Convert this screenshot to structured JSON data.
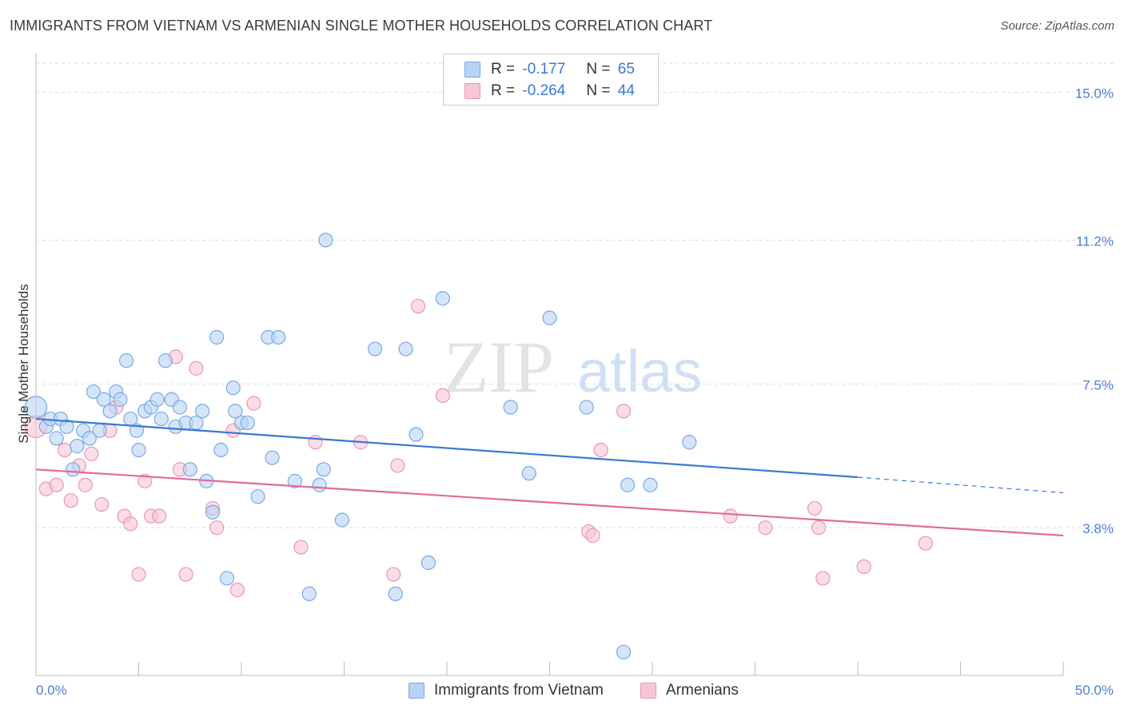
{
  "header": {
    "title": "IMMIGRANTS FROM VIETNAM VS ARMENIAN SINGLE MOTHER HOUSEHOLDS CORRELATION CHART",
    "source": "Source: ZipAtlas.com"
  },
  "watermark": {
    "zip": "ZIP",
    "atlas": "atlas"
  },
  "legend": {
    "rows": [
      {
        "r_label": "R =",
        "r_value": "-0.177",
        "n_label": "N =",
        "n_value": "65"
      },
      {
        "r_label": "R =",
        "r_value": "-0.264",
        "n_label": "N =",
        "n_value": "44"
      }
    ]
  },
  "colors": {
    "vietnam_fill": "#b9d3f5",
    "vietnam_stroke": "#7aa8e6",
    "vietnam_line": "#3a78d4",
    "armenian_fill": "#f7c6d6",
    "armenian_stroke": "#eb96b2",
    "armenian_line": "#e26a96",
    "tick_label": "#4a7fd0",
    "grid": "#dddddd"
  },
  "chart_data": {
    "type": "scatter",
    "ylabel": "Single Mother Households",
    "xlim": [
      0,
      50
    ],
    "ylim": [
      0,
      16
    ],
    "x_tick_labels": [
      {
        "value": 0,
        "label": "0.0%"
      },
      {
        "value": 50,
        "label": "50.0%"
      }
    ],
    "y_ticks": [
      {
        "value": 3.8,
        "label": "3.8%"
      },
      {
        "value": 7.5,
        "label": "7.5%"
      },
      {
        "value": 11.2,
        "label": "11.2%"
      },
      {
        "value": 15.0,
        "label": "15.0%"
      }
    ],
    "grid": "horizontal dashed",
    "legend_position": "top-center",
    "series": [
      {
        "name": "Immigrants from Vietnam",
        "color": "#7aa8e6",
        "trend": {
          "x0": 0,
          "y0": 6.6,
          "x1": 40,
          "y1": 5.1,
          "dashed_to_x": 50,
          "dashed_to_y": 4.7
        },
        "points": [
          [
            0.0,
            6.9,
            1.6
          ],
          [
            0.5,
            6.4,
            1.0
          ],
          [
            0.7,
            6.6,
            1.0
          ],
          [
            1.0,
            6.1,
            1.0
          ],
          [
            1.2,
            6.6,
            1.0
          ],
          [
            1.5,
            6.4,
            1.0
          ],
          [
            1.8,
            5.3,
            1.0
          ],
          [
            2.0,
            5.9,
            1.0
          ],
          [
            2.3,
            6.3,
            1.0
          ],
          [
            2.6,
            6.1,
            1.0
          ],
          [
            2.8,
            7.3,
            1.0
          ],
          [
            3.1,
            6.3,
            1.0
          ],
          [
            3.3,
            7.1,
            1.0
          ],
          [
            3.6,
            6.8,
            1.0
          ],
          [
            3.9,
            7.3,
            1.0
          ],
          [
            4.1,
            7.1,
            1.0
          ],
          [
            4.4,
            8.1,
            1.0
          ],
          [
            4.6,
            6.6,
            1.0
          ],
          [
            4.9,
            6.3,
            1.0
          ],
          [
            5.0,
            5.8,
            1.0
          ],
          [
            5.3,
            6.8,
            1.0
          ],
          [
            5.6,
            6.9,
            1.0
          ],
          [
            5.9,
            7.1,
            1.0
          ],
          [
            6.1,
            6.6,
            1.0
          ],
          [
            6.3,
            8.1,
            1.0
          ],
          [
            6.6,
            7.1,
            1.0
          ],
          [
            6.8,
            6.4,
            1.0
          ],
          [
            7.0,
            6.9,
            1.0
          ],
          [
            7.3,
            6.5,
            1.0
          ],
          [
            7.5,
            5.3,
            1.0
          ],
          [
            7.8,
            6.5,
            1.0
          ],
          [
            8.1,
            6.8,
            1.0
          ],
          [
            8.3,
            5.0,
            1.0
          ],
          [
            8.6,
            4.2,
            1.0
          ],
          [
            8.8,
            8.7,
            1.0
          ],
          [
            9.0,
            5.8,
            1.0
          ],
          [
            9.3,
            2.5,
            1.0
          ],
          [
            9.6,
            7.4,
            1.0
          ],
          [
            9.7,
            6.8,
            1.0
          ],
          [
            10.0,
            6.5,
            1.0
          ],
          [
            10.3,
            6.5,
            1.0
          ],
          [
            10.8,
            4.6,
            1.0
          ],
          [
            11.3,
            8.7,
            1.0
          ],
          [
            11.5,
            5.6,
            1.0
          ],
          [
            11.8,
            8.7,
            1.0
          ],
          [
            12.6,
            5.0,
            1.0
          ],
          [
            13.3,
            2.1,
            1.0
          ],
          [
            13.8,
            4.9,
            1.0
          ],
          [
            14.0,
            5.3,
            1.0
          ],
          [
            14.1,
            11.2,
            1.0
          ],
          [
            14.9,
            4.0,
            1.0
          ],
          [
            16.5,
            8.4,
            1.0
          ],
          [
            17.5,
            2.1,
            1.0
          ],
          [
            18.0,
            8.4,
            1.0
          ],
          [
            18.5,
            6.2,
            1.0
          ],
          [
            19.1,
            2.9,
            1.0
          ],
          [
            19.8,
            9.7,
            1.0
          ],
          [
            23.1,
            6.9,
            1.0
          ],
          [
            24.0,
            5.2,
            1.0
          ],
          [
            25.0,
            9.2,
            1.0
          ],
          [
            26.8,
            6.9,
            1.0
          ],
          [
            28.6,
            0.6,
            1.0
          ],
          [
            28.8,
            4.9,
            1.0
          ],
          [
            29.9,
            4.9,
            1.0
          ],
          [
            31.8,
            6.0,
            1.0
          ]
        ]
      },
      {
        "name": "Armenians",
        "color": "#eb96b2",
        "trend": {
          "x0": 0,
          "y0": 5.3,
          "x1": 50,
          "y1": 3.6
        },
        "points": [
          [
            0.0,
            6.4,
            1.6
          ],
          [
            0.5,
            4.8,
            1.0
          ],
          [
            1.0,
            4.9,
            1.0
          ],
          [
            1.4,
            5.8,
            1.0
          ],
          [
            1.7,
            4.5,
            1.0
          ],
          [
            2.1,
            5.4,
            1.0
          ],
          [
            2.4,
            4.9,
            1.0
          ],
          [
            2.7,
            5.7,
            1.0
          ],
          [
            3.2,
            4.4,
            1.0
          ],
          [
            3.6,
            6.3,
            1.0
          ],
          [
            3.9,
            6.9,
            1.0
          ],
          [
            4.3,
            4.1,
            1.0
          ],
          [
            4.6,
            3.9,
            1.0
          ],
          [
            5.0,
            2.6,
            1.0
          ],
          [
            5.3,
            5.0,
            1.0
          ],
          [
            5.6,
            4.1,
            1.0
          ],
          [
            6.0,
            4.1,
            1.0
          ],
          [
            6.8,
            8.2,
            1.0
          ],
          [
            7.0,
            5.3,
            1.0
          ],
          [
            7.3,
            2.6,
            1.0
          ],
          [
            7.8,
            7.9,
            1.0
          ],
          [
            8.6,
            4.3,
            1.0
          ],
          [
            8.8,
            3.8,
            1.0
          ],
          [
            9.6,
            6.3,
            1.0
          ],
          [
            9.8,
            2.2,
            1.0
          ],
          [
            10.6,
            7.0,
            1.0
          ],
          [
            12.9,
            3.3,
            1.0
          ],
          [
            13.6,
            6.0,
            1.0
          ],
          [
            15.8,
            6.0,
            1.0
          ],
          [
            17.4,
            2.6,
            1.0
          ],
          [
            17.6,
            5.4,
            1.0
          ],
          [
            18.6,
            9.5,
            1.0
          ],
          [
            19.8,
            7.2,
            1.0
          ],
          [
            26.9,
            3.7,
            1.0
          ],
          [
            27.1,
            3.6,
            1.0
          ],
          [
            27.5,
            5.8,
            1.0
          ],
          [
            28.6,
            6.8,
            1.0
          ],
          [
            33.8,
            4.1,
            1.0
          ],
          [
            35.5,
            3.8,
            1.0
          ],
          [
            37.9,
            4.3,
            1.0
          ],
          [
            38.1,
            3.8,
            1.0
          ],
          [
            38.3,
            2.5,
            1.0
          ],
          [
            40.3,
            2.8,
            1.0
          ],
          [
            43.3,
            3.4,
            1.0
          ]
        ]
      }
    ]
  }
}
